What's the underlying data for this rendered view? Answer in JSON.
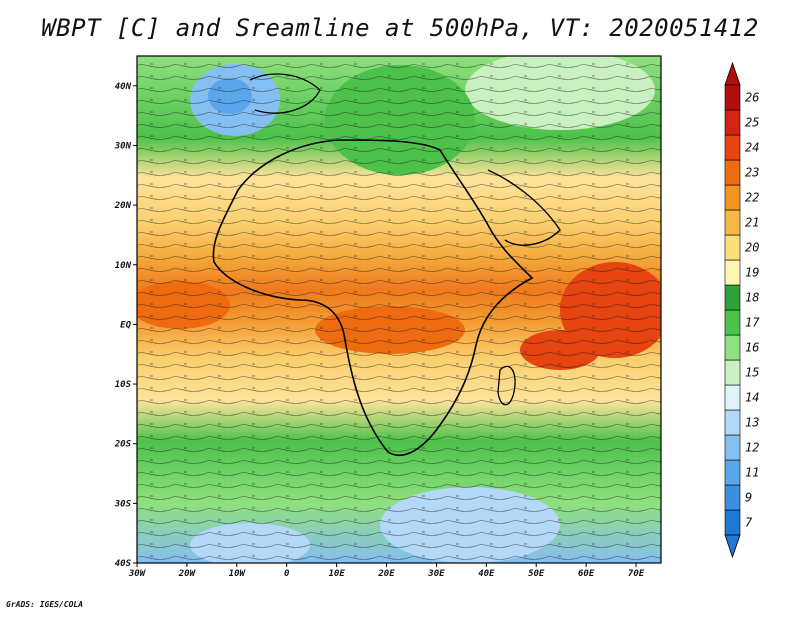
{
  "title": "WBPT [C] and Sreamline at 500hPa, VT: 2020051412",
  "credit": "GrADS: IGES/COLA",
  "chart_data": {
    "type": "heatmap",
    "title": "WBPT [C] and Sreamline at 500hPa, VT: 2020051412",
    "x_ticks": [
      "30W",
      "20W",
      "10W",
      "0",
      "10E",
      "20E",
      "30E",
      "40E",
      "50E",
      "60E",
      "70E"
    ],
    "y_ticks": [
      "40N",
      "30N",
      "20N",
      "10N",
      "EQ",
      "10S",
      "20S",
      "30S",
      "40S"
    ],
    "xlim": [
      -30,
      75
    ],
    "ylim": [
      -40,
      45
    ],
    "colorbar": {
      "labels": [
        "7",
        "9",
        "11",
        "12",
        "13",
        "14",
        "15",
        "16",
        "17",
        "18",
        "19",
        "20",
        "21",
        "22",
        "23",
        "24",
        "25",
        "26"
      ],
      "colors": [
        "#1f78d4",
        "#3a8fe0",
        "#5aa6ea",
        "#86bff2",
        "#b3d8f8",
        "#e0f3fb",
        "#c9f0c0",
        "#8fe07e",
        "#4cc24a",
        "#2ea238",
        "#fff5b0",
        "#fbe07a",
        "#f8b846",
        "#f49320",
        "#ef6b10",
        "#e64512",
        "#d42214",
        "#b20e0e"
      ]
    },
    "colors": {
      "high": "#e05a10",
      "mid": "#fde39a",
      "cool": "#4cc24a",
      "cold": "#86bff2"
    }
  }
}
